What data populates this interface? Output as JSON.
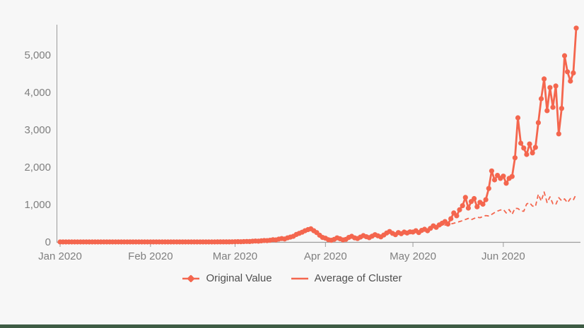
{
  "colors": {
    "series_accent": "#f4664e",
    "axis_line": "#9b9b9b",
    "tick_label_text": "#7f7f7f",
    "legend_text": "#4f4f4f",
    "background": "#f7f7f7",
    "bottom_bar": "#3e5c44"
  },
  "legend": {
    "items": [
      {
        "label": "Original Value",
        "marker": "line-with-diamond-marker-icon"
      },
      {
        "label": "Average of Cluster",
        "marker": "plain-line-marker-icon"
      }
    ]
  },
  "chart_data": {
    "type": "line",
    "title": "",
    "xlabel": "",
    "ylabel": "",
    "grid": false,
    "legend_position": "bottom-center",
    "x_axis": {
      "unit": "day",
      "start_label": "Jan 2020",
      "tick_labels": [
        "Jan 2020",
        "Feb 2020",
        "Mar 2020",
        "Apr 2020",
        "May 2020",
        "Jun 2020"
      ],
      "tick_day_indices": [
        0,
        31,
        60,
        91,
        121,
        152
      ]
    },
    "y_axis": {
      "range": [
        0,
        5810
      ],
      "ticks": [
        {
          "value": 0,
          "label": "0"
        },
        {
          "value": 1000,
          "label": "1,000"
        },
        {
          "value": 2000,
          "label": "2,000"
        },
        {
          "value": 3000,
          "label": "3,000"
        },
        {
          "value": 4000,
          "label": "4,000"
        },
        {
          "value": 5000,
          "label": "5,000"
        }
      ]
    },
    "series": [
      {
        "name": "Original Value",
        "style": "solid",
        "markers": true,
        "color": "#f4664e",
        "values": [
          0,
          0,
          0,
          0,
          0,
          0,
          0,
          0,
          0,
          0,
          0,
          0,
          0,
          0,
          0,
          0,
          0,
          0,
          0,
          0,
          0,
          0,
          0,
          0,
          0,
          0,
          0,
          0,
          0,
          0,
          0,
          0,
          0,
          0,
          0,
          0,
          0,
          0,
          0,
          0,
          0,
          0,
          0,
          0,
          0,
          0,
          0,
          0,
          0,
          0,
          0,
          0,
          0,
          0,
          1,
          1,
          1,
          2,
          2,
          3,
          5,
          8,
          6,
          10,
          14,
          12,
          18,
          24,
          20,
          30,
          38,
          35,
          45,
          60,
          55,
          75,
          90,
          80,
          110,
          130,
          150,
          200,
          230,
          260,
          300,
          330,
          350,
          300,
          250,
          180,
          120,
          100,
          60,
          45,
          70,
          110,
          85,
          55,
          70,
          120,
          150,
          110,
          90,
          130,
          170,
          140,
          115,
          155,
          195,
          165,
          135,
          185,
          240,
          280,
          230,
          195,
          250,
          220,
          265,
          240,
          270,
          265,
          300,
          250,
          310,
          340,
          300,
          365,
          430,
          390,
          455,
          500,
          545,
          480,
          620,
          775,
          700,
          860,
          970,
          1190,
          905,
          1080,
          1160,
          940,
          1060,
          1010,
          1130,
          1430,
          1900,
          1660,
          1780,
          1700,
          1760,
          1570,
          1700,
          1750,
          2250,
          3320,
          2640,
          2510,
          2340,
          2620,
          2380,
          2530,
          3190,
          3830,
          4360,
          3510,
          4130,
          3600,
          4170,
          2890,
          3570,
          4980,
          4550,
          4300,
          4520,
          5720
        ]
      },
      {
        "name": "Average of Cluster",
        "style": "dashed",
        "markers": false,
        "color": "#f4664e",
        "values": [
          0,
          0,
          0,
          0,
          0,
          0,
          0,
          0,
          0,
          0,
          0,
          0,
          0,
          0,
          0,
          0,
          0,
          0,
          0,
          0,
          0,
          0,
          0,
          0,
          0,
          0,
          0,
          0,
          0,
          0,
          0,
          0,
          0,
          0,
          0,
          0,
          0,
          0,
          0,
          0,
          0,
          0,
          0,
          0,
          0,
          0,
          0,
          0,
          0,
          0,
          0,
          0,
          0,
          0,
          1,
          1,
          1,
          2,
          2,
          3,
          5,
          7,
          7,
          9,
          13,
          12,
          17,
          22,
          20,
          28,
          35,
          34,
          44,
          57,
          54,
          72,
          86,
          80,
          104,
          124,
          145,
          190,
          222,
          250,
          288,
          318,
          335,
          295,
          248,
          182,
          125,
          105,
          80,
          60,
          75,
          100,
          85,
          65,
          78,
          110,
          135,
          112,
          95,
          125,
          158,
          138,
          118,
          150,
          182,
          160,
          140,
          178,
          225,
          262,
          228,
          200,
          242,
          225,
          255,
          240,
          262,
          268,
          290,
          262,
          305,
          330,
          310,
          350,
          395,
          405,
          420,
          435,
          450,
          465,
          480,
          500,
          520,
          545,
          570,
          600,
          630,
          595,
          628,
          660,
          648,
          680,
          705,
          695,
          735,
          785,
          825,
          855,
          868,
          775,
          865,
          740,
          900,
          895,
          830,
          820,
          1015,
          1050,
          960,
          945,
          1275,
          1095,
          1335,
          1055,
          1205,
          1020,
          1000,
          1185,
          1100,
          1150,
          1050,
          1160,
          1120,
          1280
        ]
      }
    ]
  }
}
